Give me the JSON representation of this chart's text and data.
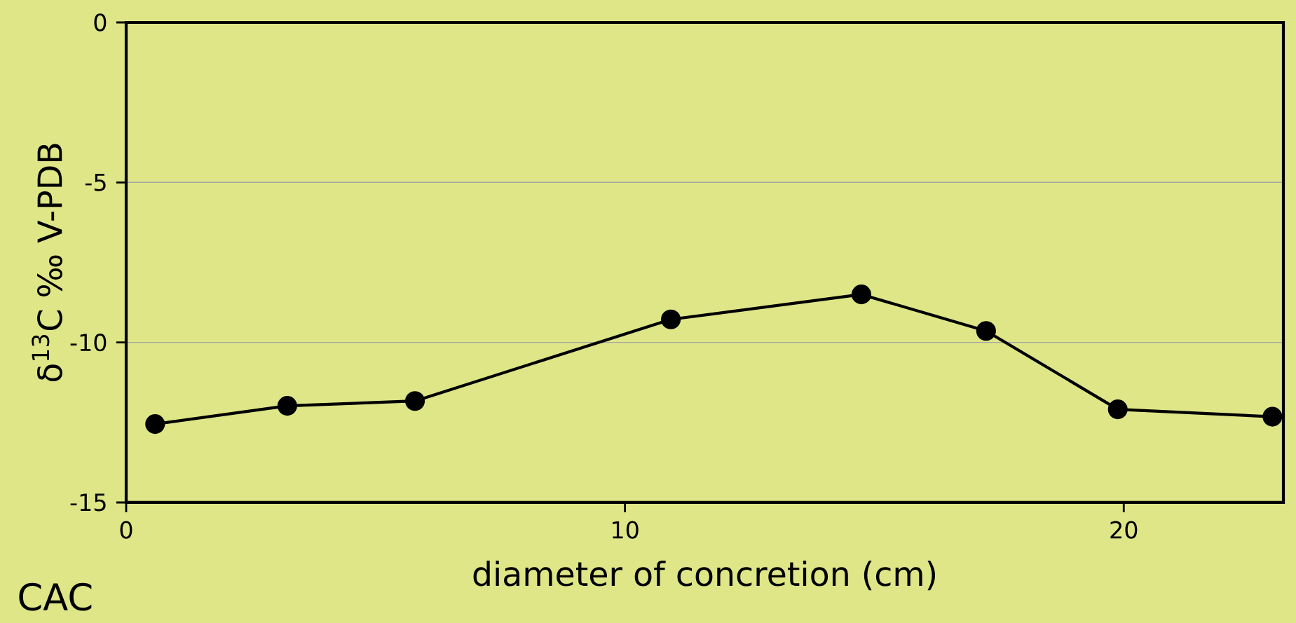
{
  "chart_data": {
    "type": "line",
    "xlabel": "diameter of concretion (cm)",
    "ylabel": "δ$^{13}$C ‰ V-PDB",
    "annotations": [
      "CAC"
    ],
    "x": [
      0.58,
      3.23,
      5.79,
      10.92,
      14.74,
      17.24,
      19.88,
      22.98
    ],
    "values": [
      -12.55,
      -11.98,
      -11.83,
      -9.28,
      -8.5,
      -9.64,
      -12.09,
      -12.32
    ],
    "color": "#000000",
    "marker": "circle",
    "line_style": "solid",
    "grid": "y",
    "xlim": [
      0,
      23.2
    ],
    "xticks": [
      0,
      10,
      20
    ],
    "ylim": [
      -15,
      0
    ],
    "yticks": [
      0,
      -5,
      -10,
      -15
    ]
  }
}
